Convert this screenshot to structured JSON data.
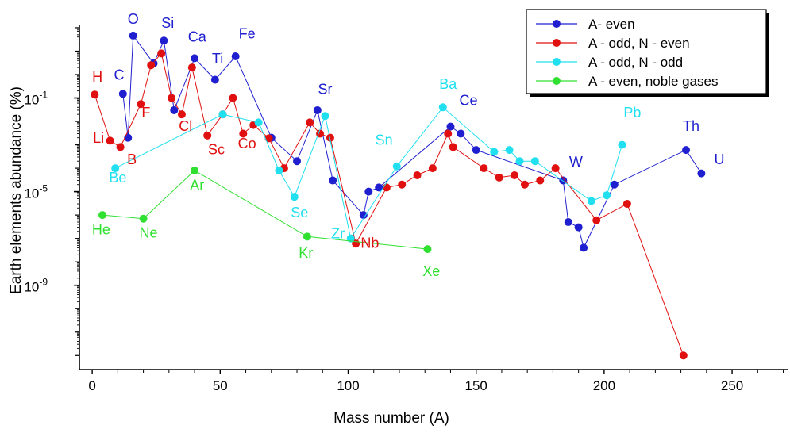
{
  "chart_data": {
    "type": "scatter",
    "xlabel": "Mass number (A)",
    "ylabel": "Earth elements abundance (%)",
    "xlim": [
      -5,
      272
    ],
    "ylim_log10": [
      -12.6,
      2.1
    ],
    "y_scale": "log",
    "x_ticks": [
      0,
      50,
      100,
      150,
      200,
      250
    ],
    "y_ticks": [
      {
        "exp": -1,
        "base": "10",
        "sup": "-1"
      },
      {
        "exp": -5,
        "base": "10",
        "sup": "-5"
      },
      {
        "exp": -9,
        "base": "10",
        "sup": "-9"
      }
    ],
    "legend_position": "top-right",
    "series": [
      {
        "name": "A- even",
        "color": "#1f1fd0",
        "points": [
          {
            "x": 12,
            "y": 0.15
          },
          {
            "x": 14,
            "y": 0.002
          },
          {
            "x": 16,
            "y": 46
          },
          {
            "x": 24,
            "y": 3
          },
          {
            "x": 28,
            "y": 28
          },
          {
            "x": 32,
            "y": 0.03
          },
          {
            "x": 40,
            "y": 5
          },
          {
            "x": 48,
            "y": 0.6
          },
          {
            "x": 56,
            "y": 6
          },
          {
            "x": 70,
            "y": 0.002
          },
          {
            "x": 80,
            "y": 0.0002
          },
          {
            "x": 88,
            "y": 0.03
          },
          {
            "x": 94,
            "y": 3e-05
          },
          {
            "x": 106,
            "y": 1e-06
          },
          {
            "x": 108,
            "y": 1e-05
          },
          {
            "x": 112,
            "y": 1.5e-05
          },
          {
            "x": 140,
            "y": 0.006
          },
          {
            "x": 144,
            "y": 0.003
          },
          {
            "x": 150,
            "y": 0.0006
          },
          {
            "x": 184,
            "y": 3e-05
          },
          {
            "x": 186,
            "y": 5e-07
          },
          {
            "x": 190,
            "y": 3e-07
          },
          {
            "x": 192,
            "y": 4e-08
          },
          {
            "x": 204,
            "y": 2e-05
          },
          {
            "x": 232,
            "y": 0.0006
          },
          {
            "x": 238,
            "y": 6e-05
          }
        ]
      },
      {
        "name": "A - odd, N - even",
        "color": "#e01010",
        "points": [
          {
            "x": 1,
            "y": 0.14
          },
          {
            "x": 7,
            "y": 0.0015
          },
          {
            "x": 11,
            "y": 0.0008
          },
          {
            "x": 19,
            "y": 0.055
          },
          {
            "x": 23,
            "y": 2.5
          },
          {
            "x": 27,
            "y": 8
          },
          {
            "x": 31,
            "y": 0.1
          },
          {
            "x": 35,
            "y": 0.02
          },
          {
            "x": 39,
            "y": 2
          },
          {
            "x": 45,
            "y": 0.0025
          },
          {
            "x": 51,
            "y": 0.02
          },
          {
            "x": 55,
            "y": 0.1
          },
          {
            "x": 59,
            "y": 0.003
          },
          {
            "x": 63,
            "y": 0.007
          },
          {
            "x": 69,
            "y": 0.0019
          },
          {
            "x": 75,
            "y": 0.0001
          },
          {
            "x": 85,
            "y": 0.009
          },
          {
            "x": 89,
            "y": 0.003
          },
          {
            "x": 93,
            "y": 0.002
          },
          {
            "x": 103,
            "y": 6e-08
          },
          {
            "x": 115,
            "y": 1.5e-05
          },
          {
            "x": 121,
            "y": 2e-05
          },
          {
            "x": 127,
            "y": 5e-05
          },
          {
            "x": 133,
            "y": 0.0001
          },
          {
            "x": 139,
            "y": 0.003
          },
          {
            "x": 141,
            "y": 0.0008
          },
          {
            "x": 153,
            "y": 0.0001
          },
          {
            "x": 159,
            "y": 4e-05
          },
          {
            "x": 165,
            "y": 5e-05
          },
          {
            "x": 169,
            "y": 2e-05
          },
          {
            "x": 175,
            "y": 3e-05
          },
          {
            "x": 181,
            "y": 0.0001
          },
          {
            "x": 197,
            "y": 6e-07
          },
          {
            "x": 209,
            "y": 3e-06
          },
          {
            "x": 231,
            "y": 1e-12
          }
        ]
      },
      {
        "name": "A - odd, N - odd",
        "color": "#20e0f0",
        "points": [
          {
            "x": 9,
            "y": 0.0001
          },
          {
            "x": 51,
            "y": 0.02
          },
          {
            "x": 65,
            "y": 0.009
          },
          {
            "x": 73,
            "y": 8e-05
          },
          {
            "x": 79,
            "y": 6e-06
          },
          {
            "x": 91,
            "y": 0.017
          },
          {
            "x": 101,
            "y": 1e-07
          },
          {
            "x": 119,
            "y": 0.00012
          },
          {
            "x": 137,
            "y": 0.04
          },
          {
            "x": 157,
            "y": 0.0005
          },
          {
            "x": 163,
            "y": 0.0006
          },
          {
            "x": 167,
            "y": 0.0002
          },
          {
            "x": 173,
            "y": 0.0002
          },
          {
            "x": 195,
            "y": 4e-06
          },
          {
            "x": 201,
            "y": 7e-06
          },
          {
            "x": 207,
            "y": 0.001
          }
        ]
      },
      {
        "name": "A - even, noble gases",
        "color": "#30e030",
        "points": [
          {
            "x": 4,
            "y": 1e-06
          },
          {
            "x": 20,
            "y": 7e-07
          },
          {
            "x": 40,
            "y": 8e-05
          },
          {
            "x": 84,
            "y": 1.2e-07
          },
          {
            "x": 131,
            "y": 3.5e-08
          }
        ]
      }
    ],
    "annotations": [
      {
        "text": "H",
        "x": 2,
        "y": 0.5,
        "series": 1
      },
      {
        "text": "Li",
        "x": 2.5,
        "y": 0.0012,
        "series": 1
      },
      {
        "text": "Be",
        "x": 10,
        "y": 2.5e-05,
        "series": 2
      },
      {
        "text": "B",
        "x": 15.5,
        "y": 0.00015,
        "series": 1
      },
      {
        "text": "C",
        "x": 10.5,
        "y": 0.6,
        "series": 0
      },
      {
        "text": "O",
        "x": 16,
        "y": 150,
        "series": 0
      },
      {
        "text": "F",
        "x": 21,
        "y": 0.015,
        "series": 1
      },
      {
        "text": "Si",
        "x": 29.5,
        "y": 100,
        "series": 0
      },
      {
        "text": "Cl",
        "x": 36.5,
        "y": 0.004,
        "series": 1
      },
      {
        "text": "Ca",
        "x": 41,
        "y": 25,
        "series": 0
      },
      {
        "text": "Ar",
        "x": 41,
        "y": 1.2e-05,
        "series": 3
      },
      {
        "text": "Ti",
        "x": 49,
        "y": 3,
        "series": 0
      },
      {
        "text": "Fe",
        "x": 60.5,
        "y": 35,
        "series": 0
      },
      {
        "text": "Sc",
        "x": 48.5,
        "y": 0.0004,
        "series": 1
      },
      {
        "text": "Co",
        "x": 60.5,
        "y": 0.0007,
        "series": 1
      },
      {
        "text": "Se",
        "x": 81,
        "y": 8e-07,
        "series": 2
      },
      {
        "text": "Sr",
        "x": 91,
        "y": 0.15,
        "series": 0
      },
      {
        "text": "Kr",
        "x": 83.5,
        "y": 1.5e-08,
        "series": 3
      },
      {
        "text": "Zr",
        "x": 96,
        "y": 1e-07,
        "series": 2
      },
      {
        "text": "Nb",
        "x": 108.5,
        "y": 4e-08,
        "series": 1
      },
      {
        "text": "Sn",
        "x": 114,
        "y": 0.001,
        "series": 2
      },
      {
        "text": "Xe",
        "x": 132.5,
        "y": 2.5e-09,
        "series": 3
      },
      {
        "text": "Ba",
        "x": 139,
        "y": 0.25,
        "series": 2
      },
      {
        "text": "Ce",
        "x": 147,
        "y": 0.05,
        "series": 0
      },
      {
        "text": "W",
        "x": 189,
        "y": 0.00012,
        "series": 0
      },
      {
        "text": "Pb",
        "x": 211,
        "y": 0.015,
        "series": 2
      },
      {
        "text": "Th",
        "x": 234,
        "y": 0.004,
        "series": 0
      },
      {
        "text": "U",
        "x": 245,
        "y": 0.00015,
        "series": 0
      },
      {
        "text": "He",
        "x": 3.5,
        "y": 1.5e-07,
        "series": 3
      },
      {
        "text": "Ne",
        "x": 22,
        "y": 1.1e-07,
        "series": 3
      }
    ]
  }
}
